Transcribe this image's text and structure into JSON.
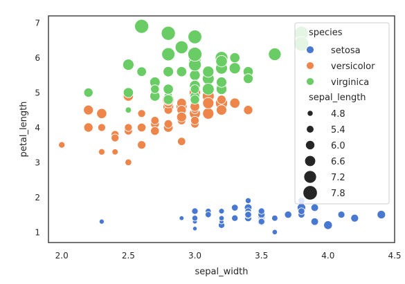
{
  "chart_data": {
    "type": "scatter",
    "title": "",
    "xlabel": "sepal_width",
    "ylabel": "petal_length",
    "xlim": [
      1.9,
      4.5
    ],
    "ylim": [
      0.7,
      7.2
    ],
    "xticks": [
      "2.0",
      "2.5",
      "3.0",
      "3.5",
      "4.0",
      "4.5"
    ],
    "yticks": [
      "1",
      "2",
      "3",
      "4",
      "5",
      "6",
      "7"
    ],
    "grid": false,
    "legend": {
      "placement": "top-right",
      "hue_title": "species",
      "size_title": "sepal_length",
      "size_entries": [
        "4.8",
        "5.4",
        "6.0",
        "6.6",
        "7.2",
        "7.8"
      ]
    },
    "series": [
      {
        "name": "setosa",
        "color": "#4878d0",
        "points": [
          [
            3.5,
            1.4,
            5.1
          ],
          [
            3.0,
            1.4,
            4.9
          ],
          [
            3.2,
            1.3,
            4.7
          ],
          [
            3.1,
            1.5,
            4.6
          ],
          [
            3.6,
            1.4,
            5.0
          ],
          [
            3.9,
            1.7,
            5.4
          ],
          [
            3.4,
            1.4,
            4.6
          ],
          [
            3.4,
            1.5,
            5.0
          ],
          [
            2.9,
            1.4,
            4.4
          ],
          [
            3.1,
            1.5,
            4.9
          ],
          [
            3.7,
            1.5,
            5.4
          ],
          [
            3.4,
            1.6,
            4.8
          ],
          [
            3.0,
            1.4,
            4.8
          ],
          [
            3.0,
            1.1,
            4.3
          ],
          [
            4.0,
            1.2,
            5.8
          ],
          [
            4.4,
            1.5,
            5.7
          ],
          [
            3.9,
            1.3,
            5.4
          ],
          [
            3.5,
            1.4,
            5.1
          ],
          [
            3.8,
            1.7,
            5.7
          ],
          [
            3.8,
            1.5,
            5.1
          ],
          [
            3.4,
            1.7,
            5.4
          ],
          [
            3.7,
            1.5,
            5.1
          ],
          [
            3.6,
            1.0,
            4.6
          ],
          [
            3.3,
            1.7,
            5.1
          ],
          [
            3.4,
            1.9,
            4.8
          ],
          [
            3.0,
            1.6,
            5.0
          ],
          [
            3.4,
            1.6,
            5.0
          ],
          [
            3.5,
            1.5,
            5.2
          ],
          [
            3.4,
            1.4,
            5.2
          ],
          [
            3.2,
            1.6,
            4.7
          ],
          [
            3.1,
            1.6,
            4.8
          ],
          [
            3.4,
            1.5,
            5.4
          ],
          [
            4.1,
            1.5,
            5.2
          ],
          [
            4.2,
            1.4,
            5.5
          ],
          [
            3.1,
            1.5,
            4.9
          ],
          [
            3.2,
            1.2,
            5.0
          ],
          [
            3.5,
            1.3,
            5.5
          ],
          [
            3.6,
            1.4,
            4.9
          ],
          [
            3.0,
            1.3,
            4.4
          ],
          [
            3.4,
            1.5,
            5.1
          ],
          [
            3.5,
            1.3,
            5.0
          ],
          [
            2.3,
            1.3,
            4.5
          ],
          [
            3.2,
            1.3,
            4.4
          ],
          [
            3.5,
            1.6,
            5.0
          ],
          [
            3.8,
            1.9,
            5.1
          ],
          [
            3.0,
            1.4,
            4.8
          ],
          [
            3.8,
            1.6,
            5.1
          ],
          [
            3.2,
            1.4,
            4.6
          ],
          [
            3.7,
            1.5,
            5.3
          ],
          [
            3.3,
            1.4,
            5.0
          ]
        ]
      },
      {
        "name": "versicolor",
        "color": "#ee854a",
        "points": [
          [
            3.2,
            4.7,
            7.0
          ],
          [
            3.2,
            4.5,
            6.4
          ],
          [
            3.1,
            4.9,
            6.9
          ],
          [
            2.3,
            4.0,
            5.5
          ],
          [
            2.8,
            4.6,
            6.5
          ],
          [
            2.8,
            4.5,
            5.7
          ],
          [
            3.3,
            4.7,
            6.3
          ],
          [
            2.4,
            3.3,
            4.9
          ],
          [
            2.9,
            4.6,
            6.6
          ],
          [
            2.7,
            3.9,
            5.2
          ],
          [
            2.0,
            3.5,
            5.0
          ],
          [
            3.0,
            4.2,
            5.9
          ],
          [
            2.2,
            4.0,
            6.0
          ],
          [
            2.9,
            4.7,
            6.1
          ],
          [
            2.9,
            3.6,
            5.6
          ],
          [
            3.1,
            4.4,
            6.7
          ],
          [
            3.0,
            4.5,
            5.6
          ],
          [
            2.7,
            4.1,
            5.8
          ],
          [
            2.2,
            4.5,
            6.2
          ],
          [
            2.5,
            3.9,
            5.6
          ],
          [
            3.2,
            4.8,
            5.9
          ],
          [
            2.8,
            4.0,
            6.1
          ],
          [
            2.5,
            4.9,
            6.3
          ],
          [
            2.8,
            4.7,
            6.1
          ],
          [
            2.9,
            4.3,
            6.4
          ],
          [
            3.0,
            4.4,
            6.6
          ],
          [
            2.8,
            4.8,
            6.8
          ],
          [
            3.0,
            5.0,
            6.7
          ],
          [
            2.9,
            4.5,
            6.0
          ],
          [
            2.6,
            3.5,
            5.7
          ],
          [
            2.4,
            3.8,
            5.5
          ],
          [
            2.4,
            3.7,
            5.5
          ],
          [
            2.7,
            3.9,
            5.8
          ],
          [
            2.7,
            5.1,
            6.0
          ],
          [
            3.0,
            4.5,
            5.4
          ],
          [
            3.4,
            4.5,
            6.0
          ],
          [
            3.1,
            4.7,
            6.7
          ],
          [
            2.3,
            4.4,
            6.3
          ],
          [
            3.0,
            4.1,
            5.6
          ],
          [
            2.5,
            4.0,
            5.5
          ],
          [
            2.6,
            4.4,
            5.5
          ],
          [
            3.0,
            4.6,
            6.1
          ],
          [
            2.6,
            4.0,
            5.8
          ],
          [
            2.3,
            3.3,
            5.0
          ],
          [
            2.7,
            4.2,
            5.6
          ],
          [
            3.0,
            4.2,
            5.7
          ],
          [
            2.9,
            4.2,
            5.7
          ],
          [
            2.9,
            4.3,
            6.2
          ],
          [
            2.5,
            3.0,
            5.1
          ],
          [
            2.8,
            4.1,
            5.7
          ]
        ]
      },
      {
        "name": "virginica",
        "color": "#6acc64",
        "points": [
          [
            3.3,
            6.0,
            6.3
          ],
          [
            2.7,
            5.1,
            5.8
          ],
          [
            3.0,
            5.9,
            7.1
          ],
          [
            2.9,
            5.6,
            6.3
          ],
          [
            3.0,
            5.8,
            6.5
          ],
          [
            3.0,
            6.6,
            7.6
          ],
          [
            2.5,
            4.5,
            4.9
          ],
          [
            2.9,
            6.3,
            7.3
          ],
          [
            2.5,
            5.8,
            6.7
          ],
          [
            3.6,
            6.1,
            7.2
          ],
          [
            3.2,
            5.1,
            6.5
          ],
          [
            2.7,
            5.3,
            6.4
          ],
          [
            3.0,
            5.5,
            6.8
          ],
          [
            2.5,
            5.0,
            5.7
          ],
          [
            2.8,
            5.1,
            5.8
          ],
          [
            3.2,
            5.3,
            6.4
          ],
          [
            3.0,
            5.5,
            6.5
          ],
          [
            3.8,
            6.7,
            7.7
          ],
          [
            2.6,
            6.9,
            7.7
          ],
          [
            2.2,
            5.0,
            6.0
          ],
          [
            3.2,
            5.7,
            6.9
          ],
          [
            2.8,
            4.9,
            5.6
          ],
          [
            2.8,
            6.7,
            7.7
          ],
          [
            2.7,
            4.9,
            6.3
          ],
          [
            3.3,
            5.7,
            6.7
          ],
          [
            3.2,
            6.0,
            7.2
          ],
          [
            2.8,
            4.8,
            6.2
          ],
          [
            3.0,
            4.9,
            6.1
          ],
          [
            2.8,
            5.6,
            6.4
          ],
          [
            3.0,
            5.8,
            7.2
          ],
          [
            2.8,
            6.1,
            7.4
          ],
          [
            3.8,
            6.4,
            7.9
          ],
          [
            2.8,
            5.6,
            6.4
          ],
          [
            2.8,
            5.1,
            6.3
          ],
          [
            2.6,
            5.6,
            6.1
          ],
          [
            3.0,
            6.1,
            7.7
          ],
          [
            3.4,
            5.6,
            6.3
          ],
          [
            3.1,
            5.5,
            6.4
          ],
          [
            3.0,
            4.8,
            6.0
          ],
          [
            3.1,
            5.4,
            6.9
          ],
          [
            3.1,
            5.6,
            6.7
          ],
          [
            3.1,
            5.1,
            6.9
          ],
          [
            2.7,
            5.1,
            5.8
          ],
          [
            3.2,
            5.9,
            6.8
          ],
          [
            3.3,
            5.7,
            6.7
          ],
          [
            3.0,
            5.2,
            6.7
          ],
          [
            2.5,
            5.0,
            6.3
          ],
          [
            3.0,
            5.2,
            6.5
          ],
          [
            3.4,
            5.4,
            6.2
          ],
          [
            3.0,
            5.1,
            5.9
          ]
        ]
      }
    ]
  }
}
